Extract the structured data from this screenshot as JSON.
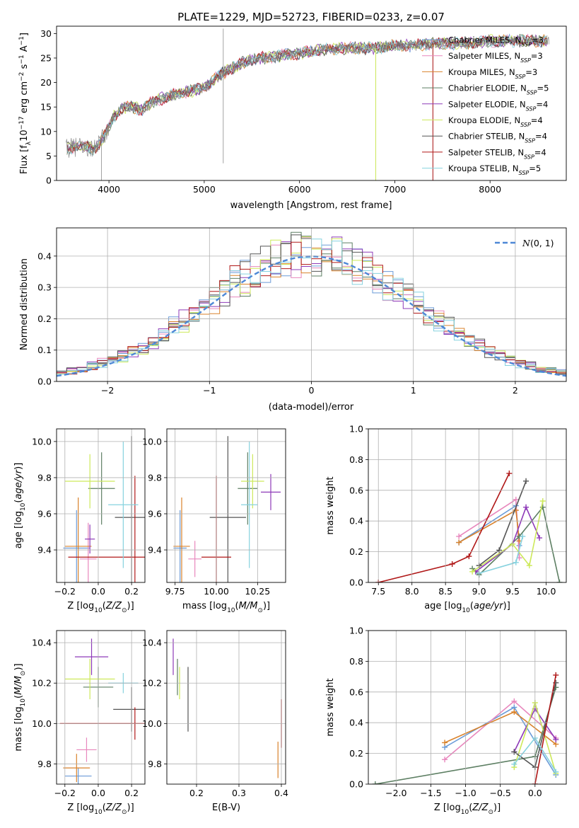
{
  "colors": {
    "Chabrier MILES": "#6b9bd8",
    "Salpeter MILES": "#e887bd",
    "Kroupa MILES": "#d9822b",
    "Chabrier ELODIE": "#5d7f63",
    "Salpeter ELODIE": "#8e3ab8",
    "Kroupa ELODIE": "#cde95a",
    "Chabrier STELIB": "#555555",
    "Salpeter STELIB": "#b01818",
    "Kroupa STELIB": "#86d2df",
    "spectrum": "#7a7a7a",
    "normal": "#4e88d6",
    "grid": "#b0b0b0"
  },
  "chart_data": [
    {
      "id": "spectrum",
      "type": "line",
      "title": "PLATE=1229, MJD=52723, FIBERID=0233, z=0.07",
      "xlabel": "wavelength [Angstrom, rest frame]",
      "ylabel": "Flux [f_λ10^-17 erg cm^-2 s^-1 A^-1]",
      "xlim": [
        3450,
        8800
      ],
      "ylim": [
        0,
        31.5
      ],
      "xticks": [
        4000,
        5000,
        6000,
        7000,
        8000
      ],
      "yticks": [
        0,
        5,
        10,
        15,
        20,
        25,
        30
      ],
      "grid": false,
      "legend_position": "right",
      "continuum": [
        [
          3550,
          6.5
        ],
        [
          3700,
          7
        ],
        [
          3850,
          6.5
        ],
        [
          3950,
          9
        ],
        [
          4050,
          13
        ],
        [
          4150,
          15
        ],
        [
          4250,
          15
        ],
        [
          4350,
          14.5
        ],
        [
          4450,
          16
        ],
        [
          4600,
          17
        ],
        [
          4800,
          18
        ],
        [
          5000,
          19
        ],
        [
          5200,
          22
        ],
        [
          5400,
          24
        ],
        [
          5600,
          25
        ],
        [
          5800,
          25.5
        ],
        [
          6000,
          26
        ],
        [
          6200,
          26.5
        ],
        [
          6400,
          27
        ],
        [
          6600,
          27
        ],
        [
          6800,
          27
        ],
        [
          7000,
          27.5
        ],
        [
          7200,
          27.5
        ],
        [
          7400,
          28
        ],
        [
          7600,
          28
        ],
        [
          7800,
          28
        ],
        [
          8000,
          28.5
        ],
        [
          8200,
          28.5
        ],
        [
          8400,
          28.5
        ],
        [
          8600,
          28.5
        ]
      ],
      "spikes": [
        [
          5200,
          31
        ],
        [
          5200,
          3.5
        ],
        [
          6800,
          0
        ],
        [
          7400,
          0
        ],
        [
          3920,
          0
        ]
      ],
      "series": [
        {
          "name": "Chabrier MILES",
          "label_main": "Chabrier MILES, N",
          "label_sub": "SSP",
          "label_end": "=3"
        },
        {
          "name": "Salpeter MILES",
          "label_main": "Salpeter MILES, N",
          "label_sub": "SSP",
          "label_end": "=3"
        },
        {
          "name": "Kroupa MILES",
          "label_main": "Kroupa MILES, N",
          "label_sub": "SSP",
          "label_end": "=3"
        },
        {
          "name": "Chabrier ELODIE",
          "label_main": "Chabrier ELODIE, N",
          "label_sub": "SSP",
          "label_end": "=5"
        },
        {
          "name": "Salpeter ELODIE",
          "label_main": "Salpeter ELODIE, N",
          "label_sub": "SSP",
          "label_end": "=4"
        },
        {
          "name": "Kroupa ELODIE",
          "label_main": "Kroupa ELODIE, N",
          "label_sub": "SSP",
          "label_end": "=4"
        },
        {
          "name": "Chabrier STELIB",
          "label_main": "Chabrier STELIB, N",
          "label_sub": "SSP",
          "label_end": "=4"
        },
        {
          "name": "Salpeter STELIB",
          "label_main": "Salpeter STELIB, N",
          "label_sub": "SSP",
          "label_end": "=4"
        },
        {
          "name": "Kroupa STELIB",
          "label_main": "Kroupa STELIB, N",
          "label_sub": "SSP",
          "label_end": "=5"
        }
      ]
    },
    {
      "id": "residuals",
      "type": "histogram",
      "xlabel": "(data-model)/error",
      "ylabel": "Normed distribution",
      "xlim": [
        -2.5,
        2.5
      ],
      "ylim": [
        0,
        0.49
      ],
      "xticks": [
        -2,
        -1,
        0,
        1,
        2
      ],
      "yticks": [
        0.0,
        0.1,
        0.2,
        0.3,
        0.4
      ],
      "grid": true,
      "legend": "N(0,1)",
      "legend_position": "top-right",
      "normal_curve": {
        "mean": 0,
        "sd": 1
      }
    },
    {
      "id": "age-vs-Z",
      "type": "errorbar",
      "xlabel": "Z [log10(Z/Z_sun)]",
      "ylabel": "age [log10(age/yr)]",
      "xlim": [
        -0.25,
        0.28
      ],
      "ylim": [
        9.22,
        10.07
      ],
      "xticks": [
        -0.2,
        0.0,
        0.2
      ],
      "yticks": [
        9.4,
        9.6,
        9.8,
        10.0
      ],
      "grid": true,
      "points": [
        {
          "series": "Chabrier MILES",
          "x": -0.13,
          "y": 9.41,
          "xerr": 0.08,
          "yerr": 0.21
        },
        {
          "series": "Salpeter MILES",
          "x": -0.06,
          "y": 9.35,
          "xerr": 0.05,
          "yerr": 0.2
        },
        {
          "series": "Kroupa MILES",
          "x": -0.12,
          "y": 9.42,
          "xerr": 0.08,
          "yerr": 0.27
        },
        {
          "series": "Chabrier ELODIE",
          "x": 0.02,
          "y": 9.74,
          "xerr": 0.08,
          "yerr": 0.2
        },
        {
          "series": "Salpeter ELODIE",
          "x": -0.05,
          "y": 9.46,
          "xerr": 0.03,
          "yerr": 0.08
        },
        {
          "series": "Kroupa ELODIE",
          "x": -0.05,
          "y": 9.78,
          "xerr": 0.15,
          "yerr": 0.15
        },
        {
          "series": "Chabrier STELIB",
          "x": 0.2,
          "y": 9.58,
          "xerr": 0.1,
          "yerr": 0.45
        },
        {
          "series": "Salpeter STELIB",
          "x": 0.22,
          "y": 9.36,
          "xerr": 0.4,
          "yerr": 0.45
        },
        {
          "series": "Kroupa STELIB",
          "x": 0.15,
          "y": 9.65,
          "xerr": 0.09,
          "yerr": 0.35
        }
      ]
    },
    {
      "id": "age-vs-mass",
      "type": "errorbar",
      "xlabel": "mass [log10(M/M_sun)]",
      "ylabel": "",
      "xlim": [
        9.7,
        10.42
      ],
      "ylim": [
        9.22,
        10.07
      ],
      "xticks": [
        9.75,
        10.0,
        10.25
      ],
      "xtick_labels": [
        "9.75",
        "10.00",
        "10.25"
      ],
      "yticks": [
        9.4,
        9.6,
        9.8,
        10.0
      ],
      "grid": true,
      "points": [
        {
          "series": "Chabrier MILES",
          "x": 9.78,
          "y": 9.41,
          "xerr": 0.04,
          "yerr": 0.21
        },
        {
          "series": "Salpeter MILES",
          "x": 9.87,
          "y": 9.35,
          "xerr": 0.04,
          "yerr": 0.1
        },
        {
          "series": "Kroupa MILES",
          "x": 9.79,
          "y": 9.42,
          "xerr": 0.05,
          "yerr": 0.27
        },
        {
          "series": "Chabrier ELODIE",
          "x": 10.19,
          "y": 9.74,
          "xerr": 0.06,
          "yerr": 0.2
        },
        {
          "series": "Salpeter ELODIE",
          "x": 10.33,
          "y": 9.72,
          "xerr": 0.06,
          "yerr": 0.1
        },
        {
          "series": "Kroupa ELODIE",
          "x": 10.22,
          "y": 9.78,
          "xerr": 0.07,
          "yerr": 0.15
        },
        {
          "series": "Chabrier STELIB",
          "x": 10.07,
          "y": 9.58,
          "xerr": 0.11,
          "yerr": 0.45
        },
        {
          "series": "Salpeter STELIB",
          "x": 10.0,
          "y": 9.36,
          "xerr": 0.09,
          "yerr": 0.45
        },
        {
          "series": "Kroupa STELIB",
          "x": 10.2,
          "y": 9.65,
          "xerr": 0.05,
          "yerr": 0.35
        }
      ]
    },
    {
      "id": "mass-weight-vs-age",
      "type": "line",
      "xlabel": "age [log10(age/yr)]",
      "ylabel": "mass weight",
      "xlim": [
        7.35,
        10.3
      ],
      "ylim": [
        0,
        1.0
      ],
      "xticks": [
        7.5,
        8.0,
        8.5,
        9.0,
        9.5,
        10.0
      ],
      "yticks": [
        0.0,
        0.2,
        0.4,
        0.6,
        0.8,
        1.0
      ],
      "grid": true,
      "series": [
        {
          "name": "Chabrier MILES",
          "x": [
            8.7,
            9.55,
            9.6
          ],
          "y": [
            0.26,
            0.5,
            0.24
          ]
        },
        {
          "name": "Salpeter MILES",
          "x": [
            8.7,
            9.55,
            9.6
          ],
          "y": [
            0.3,
            0.54,
            0.16
          ]
        },
        {
          "name": "Kroupa MILES",
          "x": [
            8.7,
            9.55,
            9.6
          ],
          "y": [
            0.26,
            0.47,
            0.27
          ]
        },
        {
          "name": "Chabrier ELODIE",
          "x": [
            8.9,
            9.0,
            9.6,
            9.95,
            10.2
          ],
          "y": [
            0.09,
            0.05,
            0.3,
            0.49,
            0.0
          ]
        },
        {
          "name": "Salpeter ELODIE",
          "x": [
            8.95,
            9.5,
            9.7,
            9.9
          ],
          "y": [
            0.07,
            0.25,
            0.49,
            0.29
          ]
        },
        {
          "name": "Kroupa ELODIE",
          "x": [
            8.9,
            9.5,
            9.75,
            9.95
          ],
          "y": [
            0.07,
            0.25,
            0.11,
            0.53
          ]
        },
        {
          "name": "Chabrier STELIB",
          "x": [
            9.0,
            9.3,
            9.7
          ],
          "y": [
            0.11,
            0.21,
            0.66
          ]
        },
        {
          "name": "Salpeter STELIB",
          "x": [
            7.5,
            8.6,
            8.85,
            9.45
          ],
          "y": [
            0.0,
            0.12,
            0.17,
            0.71
          ]
        },
        {
          "name": "Kroupa STELIB",
          "x": [
            9.0,
            9.55,
            9.65
          ],
          "y": [
            0.06,
            0.13,
            0.3
          ]
        }
      ]
    },
    {
      "id": "mass-vs-Z",
      "type": "errorbar",
      "xlabel": "Z [log10(Z/Z_sun)]",
      "ylabel": "mass [log10(M/M_sun)]",
      "xlim": [
        -0.25,
        0.28
      ],
      "ylim": [
        9.7,
        10.46
      ],
      "xticks": [
        -0.2,
        0.0,
        0.2
      ],
      "yticks": [
        9.8,
        10.0,
        10.2,
        10.4
      ],
      "grid": true,
      "points": [
        {
          "series": "Chabrier MILES",
          "x": -0.12,
          "y": 9.74,
          "xerr": 0.08,
          "yerr": 0.04
        },
        {
          "series": "Salpeter MILES",
          "x": -0.07,
          "y": 9.87,
          "xerr": 0.06,
          "yerr": 0.06
        },
        {
          "series": "Kroupa MILES",
          "x": -0.13,
          "y": 9.78,
          "xerr": 0.08,
          "yerr": 0.07
        },
        {
          "series": "Chabrier ELODIE",
          "x": 0.0,
          "y": 10.18,
          "xerr": 0.09,
          "yerr": 0.1
        },
        {
          "series": "Salpeter ELODIE",
          "x": -0.04,
          "y": 10.33,
          "xerr": 0.1,
          "yerr": 0.09
        },
        {
          "series": "Kroupa ELODIE",
          "x": -0.05,
          "y": 10.22,
          "xerr": 0.15,
          "yerr": 0.1
        },
        {
          "series": "Chabrier STELIB",
          "x": 0.2,
          "y": 10.07,
          "xerr": 0.11,
          "yerr": 0.11
        },
        {
          "series": "Salpeter STELIB",
          "x": 0.22,
          "y": 10.0,
          "xerr": 0.45,
          "yerr": 0.08
        },
        {
          "series": "Kroupa STELIB",
          "x": 0.15,
          "y": 10.2,
          "xerr": 0.09,
          "yerr": 0.05
        }
      ]
    },
    {
      "id": "mass-vs-EBV",
      "type": "errorbar",
      "xlabel": "E(B-V)",
      "ylabel": "",
      "xlim": [
        0.13,
        0.41
      ],
      "ylim": [
        9.7,
        10.46
      ],
      "xticks": [
        0.2,
        0.3,
        0.4
      ],
      "yticks": [
        9.8,
        10.0,
        10.2,
        10.4
      ],
      "grid": true,
      "points": [
        {
          "series": "Chabrier ELODIE",
          "x": 0.155,
          "y": 10.23,
          "yerr": 0.09
        },
        {
          "series": "Salpeter ELODIE",
          "x": 0.145,
          "y": 10.33,
          "yerr": 0.09
        },
        {
          "series": "Kroupa ELODIE",
          "x": 0.16,
          "y": 10.2,
          "yerr": 0.08
        },
        {
          "series": "Chabrier STELIB",
          "x": 0.18,
          "y": 10.12,
          "yerr": 0.16
        },
        {
          "series": "Salpeter STELIB",
          "x": 0.4,
          "y": 10.0,
          "yerr": 0.12
        },
        {
          "series": "Kroupa MILES",
          "x": 0.392,
          "y": 9.82,
          "yerr": 0.09
        }
      ]
    },
    {
      "id": "mass-weight-vs-Z",
      "type": "line",
      "xlabel": "Z [log10(Z/Z_sun)]",
      "ylabel": "mass weight",
      "xlim": [
        -2.4,
        0.45
      ],
      "ylim": [
        0,
        1.0
      ],
      "xticks": [
        -2.0,
        -1.5,
        -1.0,
        -0.5,
        0.0
      ],
      "yticks": [
        0.0,
        0.2,
        0.4,
        0.6,
        0.8,
        1.0
      ],
      "grid": true,
      "series": [
        {
          "name": "Chabrier MILES",
          "x": [
            -1.3,
            -0.3,
            0.3
          ],
          "y": [
            0.24,
            0.5,
            0.06
          ]
        },
        {
          "name": "Salpeter MILES",
          "x": [
            -1.3,
            -0.3,
            0.3
          ],
          "y": [
            0.16,
            0.54,
            0.3
          ]
        },
        {
          "name": "Kroupa MILES",
          "x": [
            -1.3,
            -0.3,
            0.3
          ],
          "y": [
            0.27,
            0.47,
            0.26
          ]
        },
        {
          "name": "Chabrier ELODIE",
          "x": [
            -2.3,
            0.0,
            0.3
          ],
          "y": [
            0.0,
            0.18,
            0.63
          ]
        },
        {
          "name": "Salpeter ELODIE",
          "x": [
            -0.3,
            0.0,
            0.3
          ],
          "y": [
            0.21,
            0.49,
            0.29
          ]
        },
        {
          "name": "Kroupa ELODIE",
          "x": [
            -0.3,
            0.0,
            0.3
          ],
          "y": [
            0.11,
            0.53,
            0.07
          ]
        },
        {
          "name": "Chabrier STELIB",
          "x": [
            -0.3,
            0.0,
            0.3
          ],
          "y": [
            0.21,
            0.11,
            0.66
          ]
        },
        {
          "name": "Salpeter STELIB",
          "x": [
            0.0,
            0.3
          ],
          "y": [
            0.0,
            0.71
          ]
        },
        {
          "name": "Kroupa STELIB",
          "x": [
            -0.3,
            0.0,
            0.3
          ],
          "y": [
            0.13,
            0.3,
            0.08
          ]
        }
      ]
    }
  ]
}
